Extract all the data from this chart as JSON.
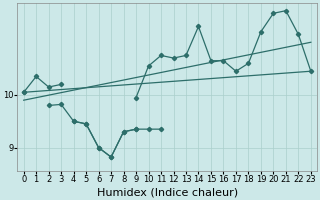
{
  "xlabel": "Humidex (Indice chaleur)",
  "background_color": "#cce8e8",
  "line_color": "#2d6e6a",
  "grid_color": "#aacfcc",
  "x_values": [
    0,
    1,
    2,
    3,
    4,
    5,
    6,
    7,
    8,
    9,
    10,
    11,
    12,
    13,
    14,
    15,
    16,
    17,
    18,
    19,
    20,
    21,
    22,
    23
  ],
  "line_upper": [
    10.05,
    10.35,
    10.15,
    10.2,
    null,
    null,
    null,
    null,
    null,
    9.95,
    10.55,
    10.75,
    10.7,
    10.75,
    11.3,
    10.65,
    10.65,
    10.45,
    10.6,
    11.2,
    11.55,
    11.6,
    11.15,
    10.45
  ],
  "line_lower_x": [
    0,
    1,
    2,
    3,
    4,
    5,
    6,
    7,
    8,
    9
  ],
  "line_lower": [
    10.05,
    null,
    9.8,
    9.82,
    9.5,
    9.45,
    9.0,
    8.82,
    9.3,
    9.35
  ],
  "line_lower2_x": [
    4,
    5,
    6,
    7,
    8,
    9,
    10,
    11
  ],
  "line_lower2": [
    9.5,
    9.45,
    9.0,
    8.82,
    9.3,
    9.35,
    9.35,
    9.35
  ],
  "trend1_x": [
    0,
    23
  ],
  "trend1_y": [
    9.9,
    11.0
  ],
  "trend2_x": [
    0,
    23
  ],
  "trend2_y": [
    10.05,
    10.45
  ],
  "ylim": [
    8.55,
    11.75
  ],
  "xlim": [
    -0.5,
    23.5
  ],
  "yticks": [
    9,
    10
  ],
  "xticks": [
    0,
    1,
    2,
    3,
    4,
    5,
    6,
    7,
    8,
    9,
    10,
    11,
    12,
    13,
    14,
    15,
    16,
    17,
    18,
    19,
    20,
    21,
    22,
    23
  ],
  "tick_fontsize": 6,
  "xlabel_fontsize": 8
}
